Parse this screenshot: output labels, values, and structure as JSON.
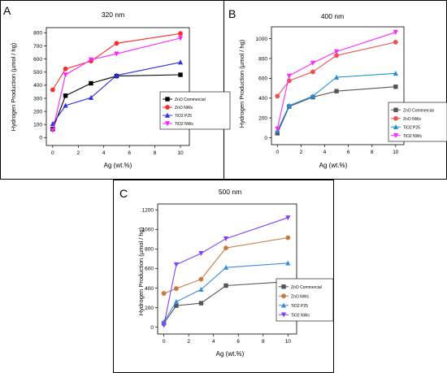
{
  "chart_data": [
    {
      "type": "line",
      "panel_letter": "A",
      "title": "320 nm",
      "xlabel": "Ag (wt.%)",
      "ylabel": "Hydrogen Production (µmol / hg)",
      "xlim": [
        -0.5,
        10.7
      ],
      "ylim": [
        -60,
        840
      ],
      "xticks": [
        0,
        2,
        4,
        6,
        8,
        10
      ],
      "yticks": [
        0,
        100,
        200,
        300,
        400,
        500,
        600,
        700,
        800
      ],
      "grid": false,
      "legend_position": "right",
      "x": [
        0,
        1,
        3,
        5,
        10
      ],
      "series": [
        {
          "name": "ZnO Commercial",
          "color": "#000000",
          "marker": "square",
          "values": [
            65,
            320,
            415,
            470,
            480
          ]
        },
        {
          "name": "ZnO NWs",
          "color": "#ff2a2a",
          "marker": "circle",
          "values": [
            365,
            525,
            585,
            720,
            795
          ]
        },
        {
          "name": "TiO2 P25",
          "color": "#2f2fe6",
          "marker": "triangle-up",
          "values": [
            105,
            245,
            305,
            475,
            575
          ]
        },
        {
          "name": "TiO2 NWs",
          "color": "#ff1fff",
          "marker": "triangle-down",
          "values": [
            55,
            480,
            595,
            640,
            760
          ]
        }
      ]
    },
    {
      "type": "line",
      "panel_letter": "B",
      "title": "400 nm",
      "xlabel": "Ag (wt.%)",
      "ylabel": "Hydrogen Production (µmol / hg)",
      "xlim": [
        -0.5,
        10.7
      ],
      "ylim": [
        -70,
        1120
      ],
      "xticks": [
        0,
        2,
        4,
        6,
        8,
        10
      ],
      "yticks": [
        0,
        200,
        400,
        600,
        800,
        1000
      ],
      "grid": false,
      "legend_position": "right",
      "x": [
        0,
        1,
        3,
        5,
        10
      ],
      "series": [
        {
          "name": "ZnO Commercial",
          "color": "#555555",
          "marker": "square",
          "values": [
            45,
            315,
            410,
            470,
            515
          ]
        },
        {
          "name": "ZnO NWs",
          "color": "#f05050",
          "marker": "circle",
          "values": [
            420,
            575,
            665,
            830,
            965
          ]
        },
        {
          "name": "TiO2 P25",
          "color": "#1e90d8",
          "marker": "triangle-up",
          "values": [
            70,
            325,
            420,
            610,
            650
          ]
        },
        {
          "name": "TiO2 NWs",
          "color": "#ff2aff",
          "marker": "triangle-down",
          "values": [
            90,
            625,
            755,
            870,
            1065
          ]
        }
      ]
    },
    {
      "type": "line",
      "panel_letter": "C",
      "title": "500 nm",
      "xlabel": "Ag (wt.%)",
      "ylabel": "Hydrogen Production (µmol / hg)",
      "xlim": [
        -0.5,
        10.7
      ],
      "ylim": [
        -70,
        1260
      ],
      "xticks": [
        0,
        2,
        4,
        6,
        8,
        10
      ],
      "yticks": [
        0,
        200,
        400,
        600,
        800,
        1000,
        1200
      ],
      "grid": false,
      "legend_position": "right",
      "x": [
        0,
        1,
        3,
        5,
        10
      ],
      "series": [
        {
          "name": "ZnO Commercial",
          "color": "#555555",
          "marker": "square",
          "values": [
            40,
            220,
            245,
            425,
            465
          ]
        },
        {
          "name": "ZnO NWs",
          "color": "#c87840",
          "marker": "circle",
          "values": [
            345,
            395,
            490,
            810,
            915
          ]
        },
        {
          "name": "TiO2 P25",
          "color": "#3a8de0",
          "marker": "triangle-up",
          "values": [
            55,
            260,
            385,
            610,
            655
          ]
        },
        {
          "name": "TiO2 NWs",
          "color": "#8040ff",
          "marker": "triangle-down",
          "values": [
            20,
            640,
            755,
            905,
            1120
          ]
        }
      ]
    }
  ]
}
